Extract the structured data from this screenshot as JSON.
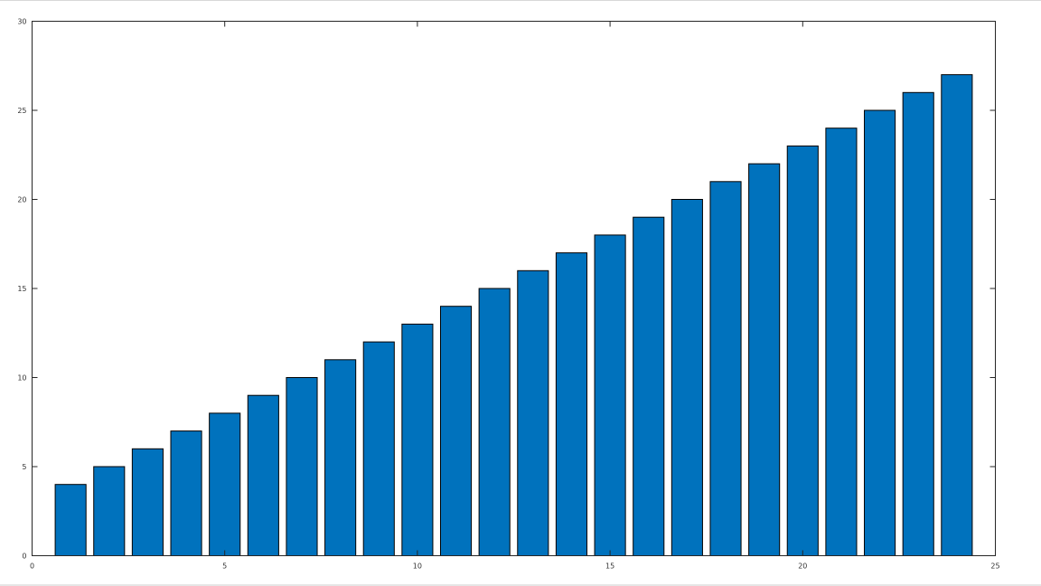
{
  "chart_data": {
    "type": "bar",
    "title": "",
    "xlabel": "",
    "ylabel": "",
    "x": [
      1,
      2,
      3,
      4,
      5,
      6,
      7,
      8,
      9,
      10,
      11,
      12,
      13,
      14,
      15,
      16,
      17,
      18,
      19,
      20,
      21,
      22,
      23,
      24
    ],
    "values": [
      4,
      5,
      6,
      7,
      8,
      9,
      10,
      11,
      12,
      13,
      14,
      15,
      16,
      17,
      18,
      19,
      20,
      21,
      22,
      23,
      24,
      25,
      26,
      27
    ],
    "xlim": [
      0,
      25
    ],
    "ylim": [
      0,
      30
    ],
    "xticks": [
      "0",
      "5",
      "10",
      "15",
      "20",
      "25"
    ],
    "yticks": [
      "0",
      "5",
      "10",
      "15",
      "20",
      "25",
      "30"
    ],
    "bar_width": 0.8,
    "grid": false,
    "bar_color": "#0072bd",
    "edge_color": "#000000"
  }
}
